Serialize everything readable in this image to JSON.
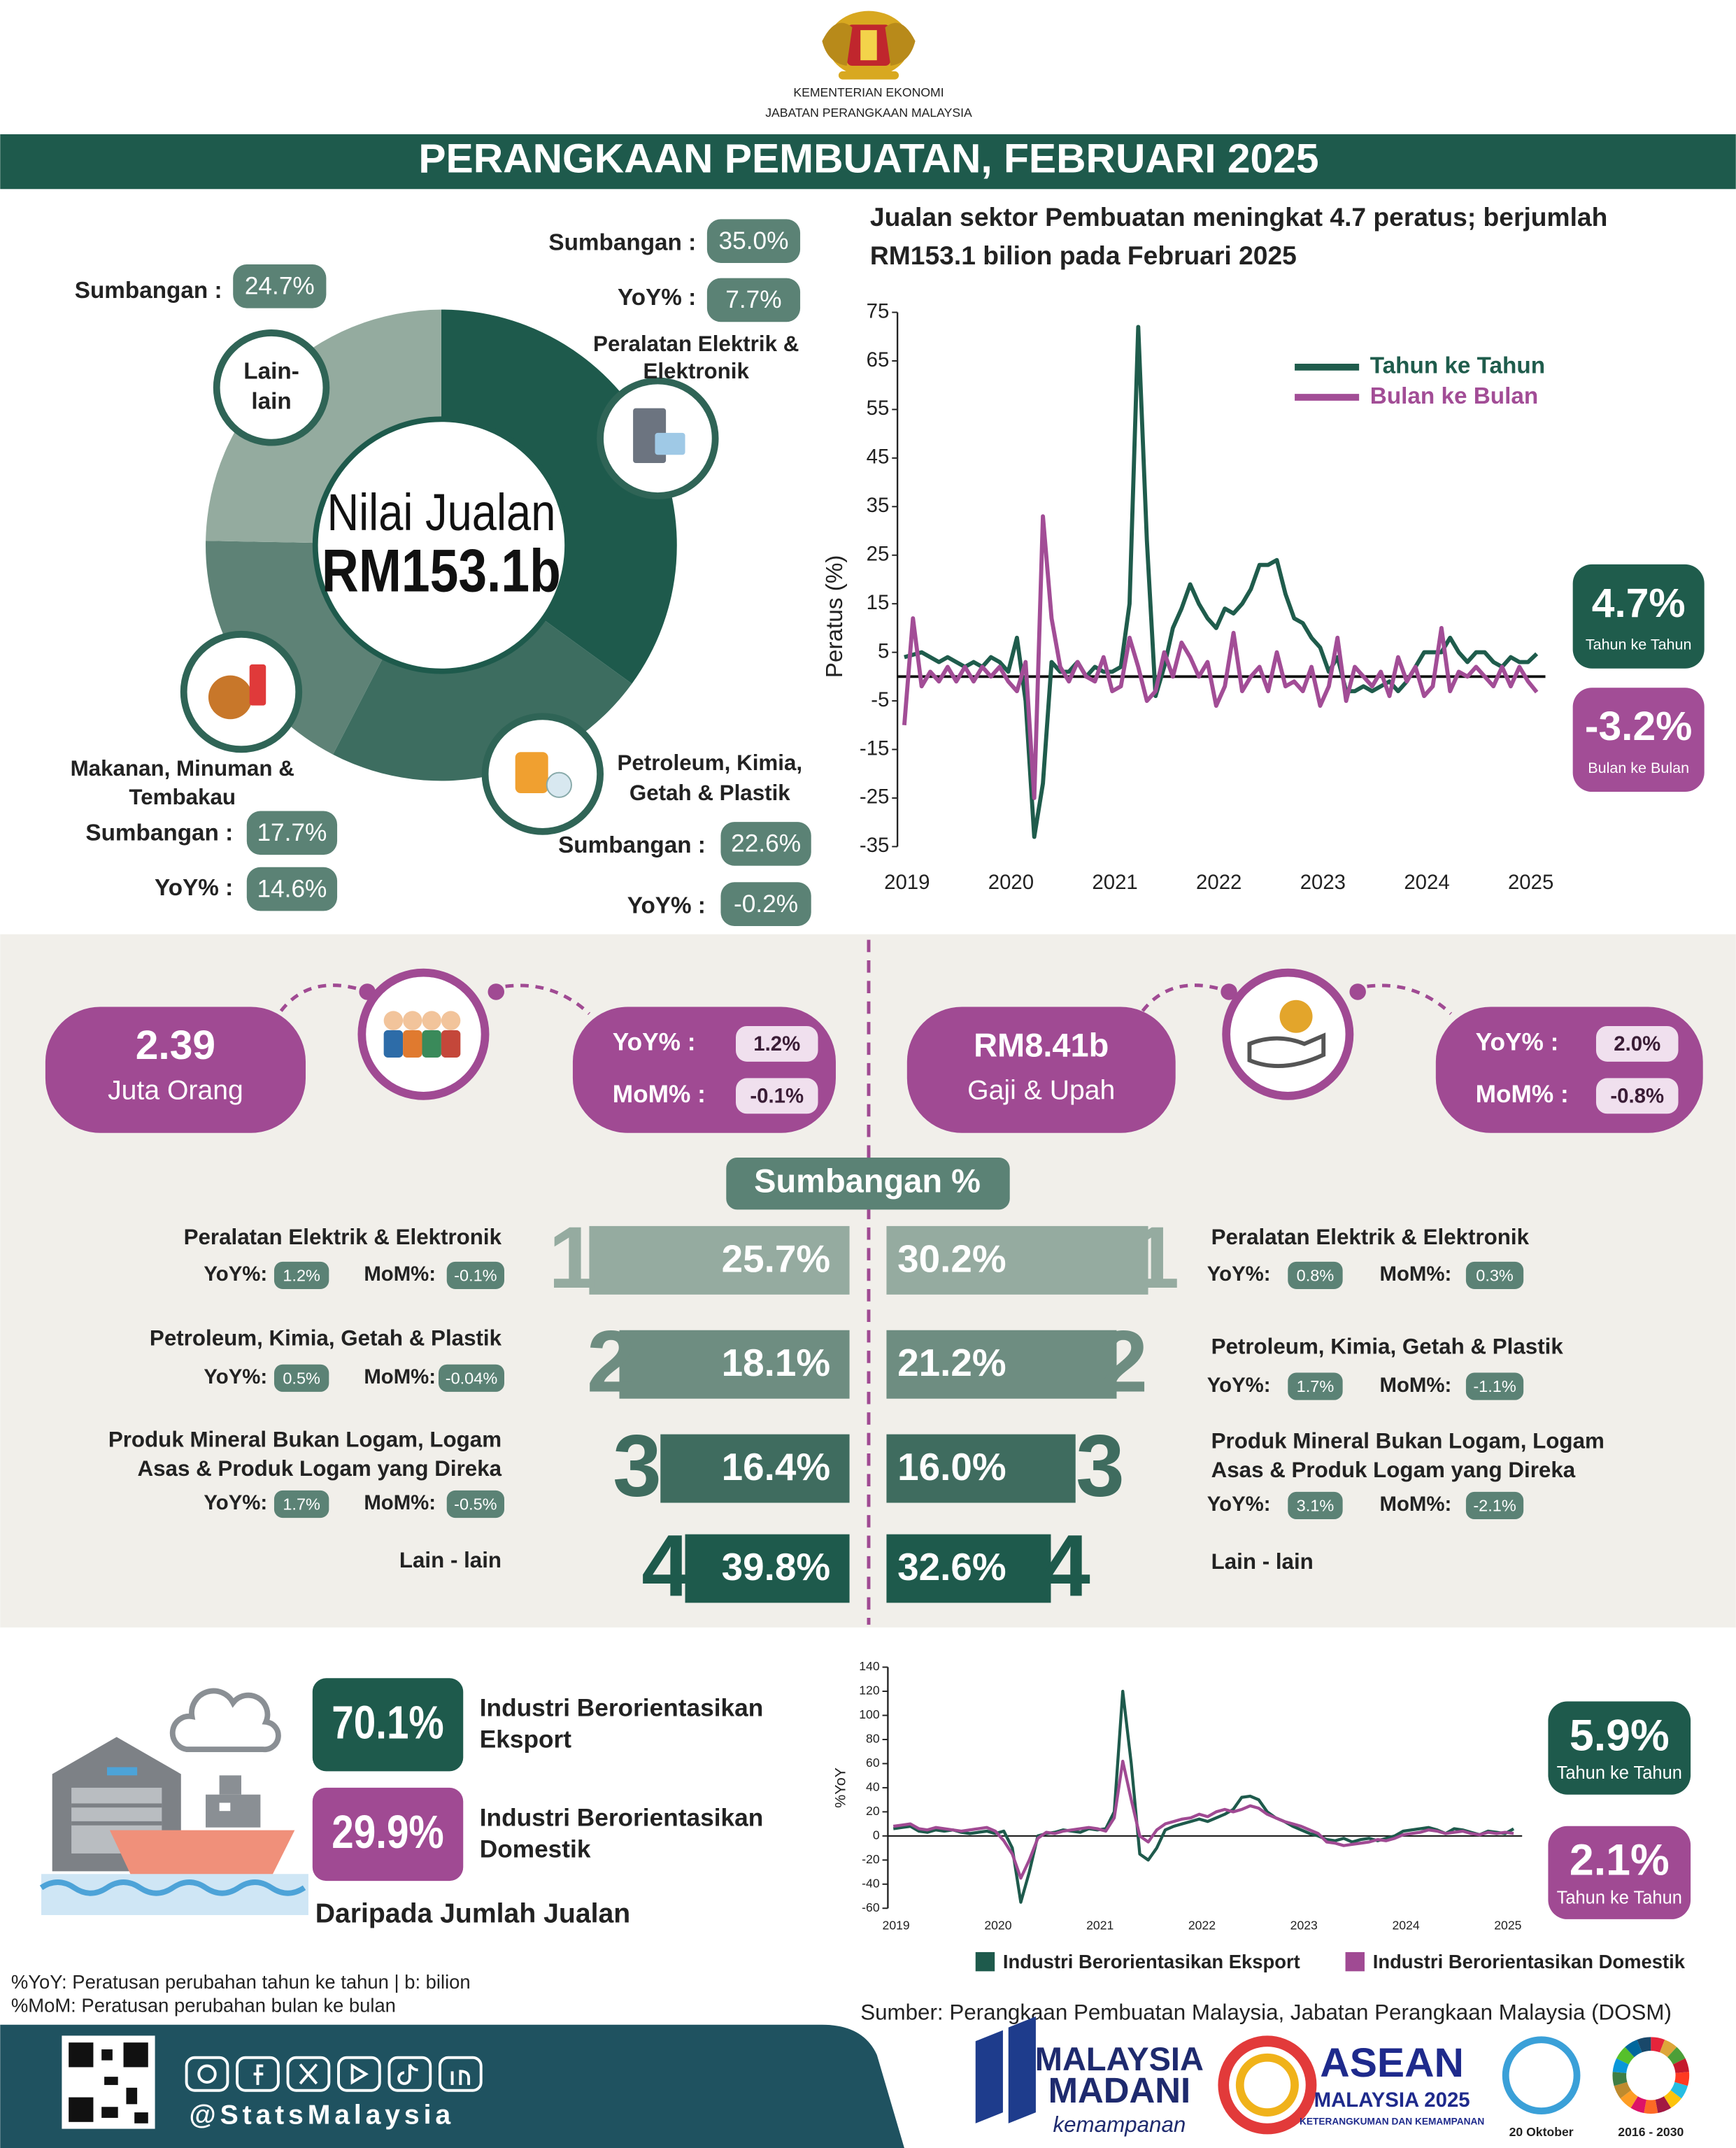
{
  "header": {
    "ministry": "KEMENTERIAN EKONOMI",
    "department": "JABATAN PERANGKAAN MALAYSIA",
    "title": "PERANGKAAN PEMBUATAN, FEBRUARI 2025"
  },
  "chart_data": [
    {
      "type": "pie",
      "center_text": [
        "Nilai Jualan",
        "RM153.1b"
      ],
      "categories": [
        [
          "Peralatan Elektrik &",
          "Elektronik"
        ],
        [
          "Petroleum, Kimia,",
          "Getah & Plastik"
        ],
        [
          "Makanan, Minuman &",
          "Tembakau"
        ],
        [
          "Lain-",
          "lain"
        ]
      ],
      "values": [
        35.0,
        22.6,
        17.7,
        24.7
      ],
      "value_labels": [
        "35.0%",
        "22.6%",
        "17.7%",
        "24.7%"
      ],
      "colors": [
        "#1e5a4c",
        "#3d6d60",
        "#5e8276",
        "#94ab9f"
      ],
      "sumbangan_label": "Sumbangan :",
      "yoy_label": "YoY% :",
      "yoy": [
        "7.7%",
        "-0.2%",
        "14.6%",
        null
      ]
    },
    {
      "type": "line",
      "title": [
        "Jualan sektor Pembuatan meningkat 4.7 peratus; berjumlah",
        "RM153.1 bilion pada Februari 2025"
      ],
      "ylabel": "Peratus (%)",
      "categories": [
        "2019",
        null,
        null,
        null,
        null,
        null,
        null,
        null,
        null,
        null,
        null,
        null,
        "2020",
        null,
        null,
        null,
        null,
        null,
        null,
        null,
        null,
        null,
        null,
        null,
        "2021",
        null,
        null,
        null,
        null,
        null,
        null,
        null,
        null,
        null,
        null,
        null,
        "2022",
        null,
        null,
        null,
        null,
        null,
        null,
        null,
        null,
        null,
        null,
        null,
        "2023",
        null,
        null,
        null,
        null,
        null,
        null,
        null,
        null,
        null,
        null,
        null,
        "2024",
        null,
        null,
        null,
        null,
        null,
        null,
        null,
        null,
        null,
        null,
        null,
        "2025",
        null
      ],
      "series": [
        {
          "name": "Tahun ke Tahun",
          "color": "#1f5c4c",
          "values": [
            4,
            4.5,
            5,
            4,
            3,
            4,
            3,
            2,
            3,
            2,
            4,
            3,
            1,
            8,
            -5,
            -33,
            -22,
            3,
            1,
            1,
            3,
            0,
            2,
            1,
            1,
            2,
            15,
            72,
            28,
            -4,
            2,
            10,
            14,
            19,
            15,
            12,
            10,
            14,
            13,
            15,
            18,
            23,
            23,
            24,
            17,
            12,
            11,
            8,
            6,
            1,
            4,
            -3,
            -3,
            -2,
            -3,
            -2,
            -1,
            -3,
            -1,
            2,
            5,
            5,
            5,
            8,
            5,
            3,
            5,
            5,
            3,
            2,
            4,
            3,
            3,
            4.7
          ]
        },
        {
          "name": "Bulan ke Bulan",
          "color": "#a24d96",
          "values": [
            -10,
            12,
            -2,
            1,
            -1,
            2,
            -1,
            2,
            -1,
            2,
            0,
            2,
            -1,
            -3,
            3,
            -25,
            33,
            12,
            2,
            -1,
            3,
            0,
            -1,
            4,
            -3,
            -2,
            8,
            2,
            -5,
            -3,
            5,
            0,
            7,
            4,
            0,
            3,
            -6,
            -2,
            9,
            -3,
            0,
            2,
            -3,
            5,
            -2,
            -1,
            -3,
            2,
            -6,
            -2,
            8,
            -5,
            2,
            0,
            -2,
            1,
            -4,
            4,
            -1,
            2,
            -4,
            -2,
            10,
            -3,
            1,
            0,
            2,
            0,
            -2,
            2,
            -2,
            2,
            -1,
            -3.2
          ]
        }
      ],
      "ylim": [
        -35,
        75
      ],
      "yticks": [
        75,
        65,
        55,
        45,
        35,
        25,
        15,
        5,
        -5,
        -15,
        -25,
        -35
      ],
      "legend": "upper right",
      "grid": false,
      "annotations": [
        {
          "text": "4.7%",
          "label": "Tahun ke Tahun",
          "color": "#1f5c4c"
        },
        {
          "text": "-3.2%",
          "label": "Bulan ke Bulan",
          "color": "#a24d96"
        }
      ]
    },
    {
      "type": "line",
      "ylabel": "%YoY",
      "categories": [
        "2019",
        null,
        null,
        null,
        null,
        null,
        null,
        null,
        null,
        null,
        null,
        null,
        "2020",
        null,
        null,
        null,
        null,
        null,
        null,
        null,
        null,
        null,
        null,
        null,
        "2021",
        null,
        null,
        null,
        null,
        null,
        null,
        null,
        null,
        null,
        null,
        null,
        "2022",
        null,
        null,
        null,
        null,
        null,
        null,
        null,
        null,
        null,
        null,
        null,
        "2023",
        null,
        null,
        null,
        null,
        null,
        null,
        null,
        null,
        null,
        null,
        null,
        "2024",
        null,
        null,
        null,
        null,
        null,
        null,
        null,
        null,
        null,
        null,
        null,
        "2025",
        null
      ],
      "series": [
        {
          "name": "Industri Berorientasikan Eksport",
          "color": "#1e5a4c",
          "values": [
            6,
            7,
            8,
            4,
            3,
            5,
            4,
            5,
            3,
            2,
            3,
            4,
            2,
            4,
            -10,
            -55,
            -30,
            0,
            2,
            3,
            5,
            4,
            3,
            6,
            5,
            6,
            20,
            120,
            60,
            -15,
            -20,
            -10,
            5,
            8,
            10,
            12,
            14,
            12,
            15,
            18,
            22,
            32,
            33,
            30,
            20,
            15,
            12,
            8,
            5,
            2,
            0,
            -3,
            -4,
            -2,
            -5,
            -3,
            -2,
            -4,
            -2,
            0,
            4,
            5,
            6,
            7,
            5,
            2,
            6,
            5,
            3,
            1,
            4,
            3,
            2,
            5.9
          ]
        },
        {
          "name": "Industri Berorientasikan Domestik",
          "color": "#a04a93",
          "values": [
            8,
            9,
            10,
            6,
            5,
            7,
            6,
            5,
            4,
            5,
            6,
            7,
            4,
            -4,
            -15,
            -35,
            -20,
            -2,
            3,
            2,
            4,
            5,
            6,
            7,
            6,
            4,
            15,
            62,
            30,
            0,
            -5,
            5,
            10,
            12,
            14,
            15,
            18,
            16,
            20,
            22,
            20,
            22,
            25,
            23,
            18,
            15,
            12,
            10,
            8,
            5,
            2,
            -5,
            -6,
            -8,
            -7,
            -6,
            -5,
            -3,
            -4,
            -2,
            1,
            2,
            3,
            5,
            4,
            2,
            3,
            4,
            2,
            1,
            3,
            2,
            3,
            2.1
          ]
        }
      ],
      "ylim": [
        -60,
        140
      ],
      "yticks": [
        140,
        120,
        100,
        80,
        60,
        40,
        20,
        0,
        -20,
        -40,
        -60
      ],
      "legend": "bottom",
      "grid": false,
      "annotations": [
        {
          "text": "5.9%",
          "label": "Tahun ke Tahun",
          "color": "#1e5a4c"
        },
        {
          "text": "2.1%",
          "label": "Tahun ke Tahun",
          "color": "#a04a93"
        }
      ]
    }
  ],
  "employment": {
    "value": "2.39",
    "unit": "Juta Orang",
    "yoy_label": "YoY%  :",
    "yoy": "1.2%",
    "mom_label": "MoM% :",
    "mom": "-0.1%"
  },
  "salaries": {
    "value": "RM8.41b",
    "unit": "Gaji & Upah",
    "yoy_label": "YoY%  :",
    "yoy": "2.0%",
    "mom_label": "MoM% :",
    "mom": "-0.8%"
  },
  "contribution": {
    "title": "Sumbangan %",
    "yoy_label": "YoY%:",
    "mom_label": "MoM%:",
    "employment": [
      {
        "rank": "1",
        "name": [
          "Peralatan Elektrik & Elektronik"
        ],
        "share": "25.7%",
        "yoy": "1.2%",
        "mom": "-0.1%"
      },
      {
        "rank": "2",
        "name": [
          "Petroleum, Kimia, Getah & Plastik"
        ],
        "share": "18.1%",
        "yoy": "0.5%",
        "mom": "-0.04%"
      },
      {
        "rank": "3",
        "name": [
          "Produk Mineral Bukan Logam, Logam",
          "Asas & Produk Logam yang Direka"
        ],
        "share": "16.4%",
        "yoy": "1.7%",
        "mom": "-0.5%"
      },
      {
        "rank": "4",
        "name": [
          "Lain - lain"
        ],
        "share": "39.8%"
      }
    ],
    "salaries": [
      {
        "rank": "1",
        "name": [
          "Peralatan Elektrik & Elektronik"
        ],
        "share": "30.2%",
        "yoy": "0.8%",
        "mom": "0.3%"
      },
      {
        "rank": "2",
        "name": [
          "Petroleum, Kimia, Getah & Plastik"
        ],
        "share": "21.2%",
        "yoy": "1.7%",
        "mom": "-1.1%"
      },
      {
        "rank": "3",
        "name": [
          "Produk Mineral Bukan Logam, Logam",
          "Asas & Produk Logam yang Direka"
        ],
        "share": "16.0%",
        "yoy": "3.1%",
        "mom": "-2.1%"
      },
      {
        "rank": "4",
        "name": [
          "Lain - lain"
        ],
        "share": "32.6%"
      }
    ]
  },
  "orientation": {
    "export": {
      "share": "70.1%",
      "label": [
        "Industri Berorientasikan",
        "Eksport"
      ]
    },
    "domestic": {
      "share": "29.9%",
      "label": [
        "Industri Berorientasikan",
        "Domestik"
      ]
    },
    "note": "Daripada Jumlah Jualan"
  },
  "footnotes": [
    "%YoY: Peratusan perubahan tahun ke tahun | b: bilion",
    "%MoM: Peratusan perubahan bulan ke bulan"
  ],
  "source": "Sumber: Perangkaan Pembuatan Malaysia, Jabatan Perangkaan Malaysia (DOSM)",
  "footer": {
    "handle": "@StatsMalaysia",
    "logos": [
      "MALAYSIA",
      "MADANI",
      "kemampanan",
      "ASEAN",
      "MALAYSIA 2025",
      "KETERANGKUMAN DAN KEMAMPANAN",
      "20 Oktober",
      "2016 - 2030"
    ]
  }
}
